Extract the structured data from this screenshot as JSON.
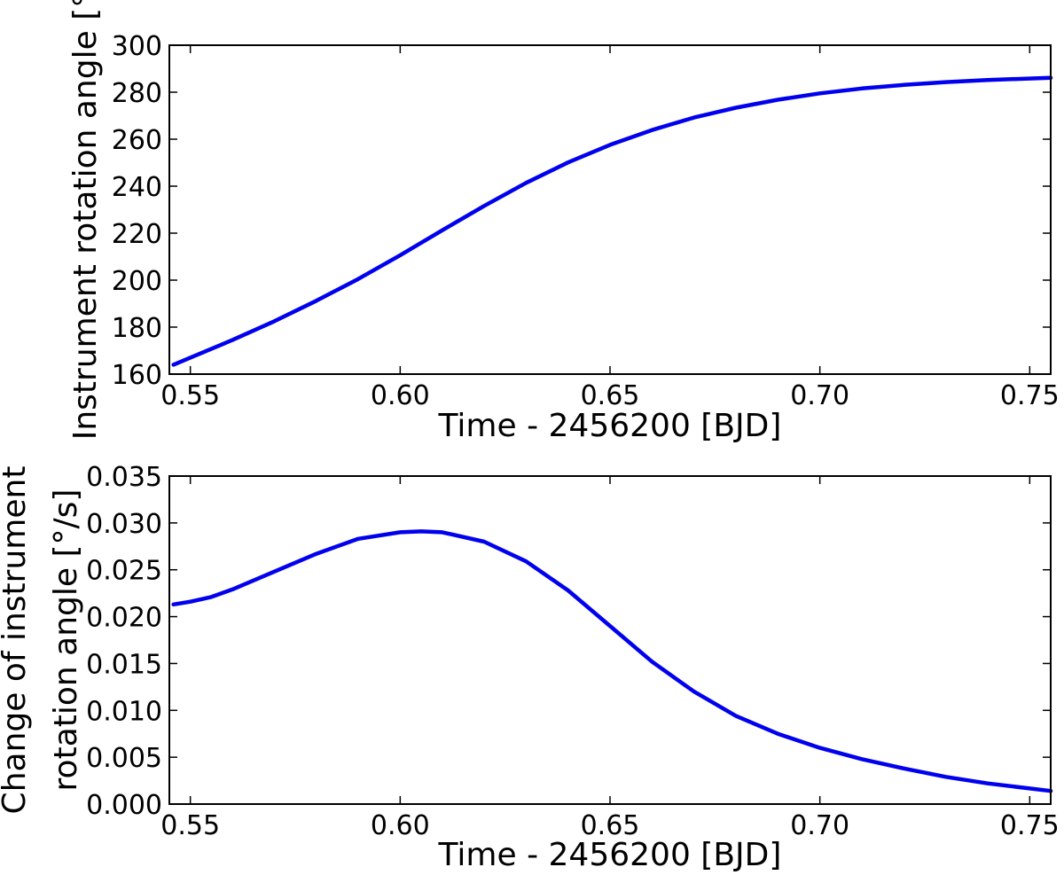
{
  "chart_data": [
    {
      "type": "line",
      "xlabel": "Time - 2456200 [BJD]",
      "ylabel": "Instrument rotation angle [°]",
      "xlim": [
        0.545,
        0.755
      ],
      "ylim": [
        160,
        300
      ],
      "xticks": [
        "0.55",
        "0.60",
        "0.65",
        "0.70",
        "0.75"
      ],
      "yticks": [
        "160",
        "180",
        "200",
        "220",
        "240",
        "260",
        "280",
        "300"
      ],
      "grid": false,
      "series": [
        {
          "color": "#0000ee",
          "x": [
            0.546,
            0.55,
            0.56,
            0.57,
            0.58,
            0.59,
            0.6,
            0.61,
            0.62,
            0.63,
            0.64,
            0.65,
            0.66,
            0.67,
            0.68,
            0.69,
            0.7,
            0.71,
            0.72,
            0.73,
            0.74,
            0.755
          ],
          "y": [
            164,
            167,
            174.5,
            182.5,
            191.2,
            200.5,
            210.6,
            221.2,
            231.6,
            241.4,
            250.1,
            257.6,
            263.9,
            269.2,
            273.4,
            276.8,
            279.5,
            281.6,
            283.1,
            284.3,
            285.2,
            286.1
          ]
        }
      ]
    },
    {
      "type": "line",
      "xlabel": "Time - 2456200 [BJD]",
      "ylabel": [
        "Change of instrument",
        "rotation angle [°/s]"
      ],
      "xlim": [
        0.545,
        0.755
      ],
      "ylim": [
        0.0,
        0.035
      ],
      "xticks": [
        "0.55",
        "0.60",
        "0.65",
        "0.70",
        "0.75"
      ],
      "yticks": [
        "0.000",
        "0.005",
        "0.010",
        "0.015",
        "0.020",
        "0.025",
        "0.030",
        "0.035"
      ],
      "grid": false,
      "series": [
        {
          "color": "#0000ee",
          "x": [
            0.546,
            0.55,
            0.555,
            0.56,
            0.57,
            0.58,
            0.59,
            0.6,
            0.605,
            0.61,
            0.62,
            0.63,
            0.64,
            0.65,
            0.66,
            0.67,
            0.68,
            0.69,
            0.7,
            0.71,
            0.72,
            0.73,
            0.74,
            0.755
          ],
          "y": [
            0.0213,
            0.0216,
            0.0221,
            0.0229,
            0.0248,
            0.0267,
            0.0283,
            0.029,
            0.0291,
            0.029,
            0.028,
            0.0259,
            0.0228,
            0.019,
            0.0152,
            0.012,
            0.0094,
            0.0075,
            0.006,
            0.0048,
            0.0038,
            0.0029,
            0.0022,
            0.0014
          ]
        }
      ]
    }
  ]
}
